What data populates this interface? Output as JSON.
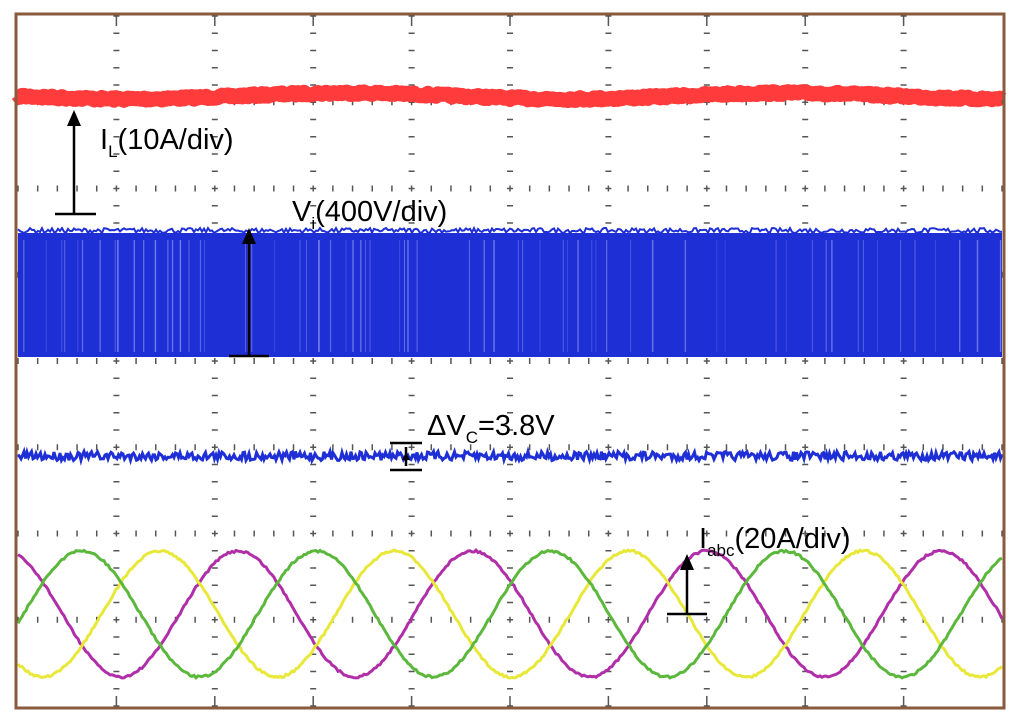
{
  "chart_data": {
    "type": "line",
    "title": "",
    "xlabel": "",
    "ylabel": "",
    "grid": true,
    "grid_divisions": {
      "horizontal": 10,
      "vertical": 8
    },
    "background": "#ffffff",
    "series": [
      {
        "name": "I_L",
        "label_main": "I",
        "label_sub": "L",
        "label_rest": "(10A/div)",
        "color": "#ff3b3b",
        "kind": "dc-noisy"
      },
      {
        "name": "V_i",
        "label_main": "V",
        "label_sub": "i",
        "label_rest": "(400V/div)",
        "color": "#1f2fd6",
        "kind": "pwm"
      },
      {
        "name": "ΔV_C",
        "label_main": "ΔV",
        "label_sub": "C",
        "label_rest": "=3.8V",
        "color": "#1f2fd6",
        "kind": "ripple"
      },
      {
        "name": "I_abc",
        "label_main": "I",
        "label_sub": "abc",
        "label_rest": "(20A/div)",
        "kind": "three-phase-sine",
        "cycles": 4.2,
        "phase_colors": {
          "a": "#b02fa8",
          "b": "#e8e83a",
          "c": "#5cb83c"
        }
      }
    ],
    "colors": {
      "frame": "#8a5a3c",
      "grid_tick": "#555555",
      "marker": "#000000"
    }
  }
}
